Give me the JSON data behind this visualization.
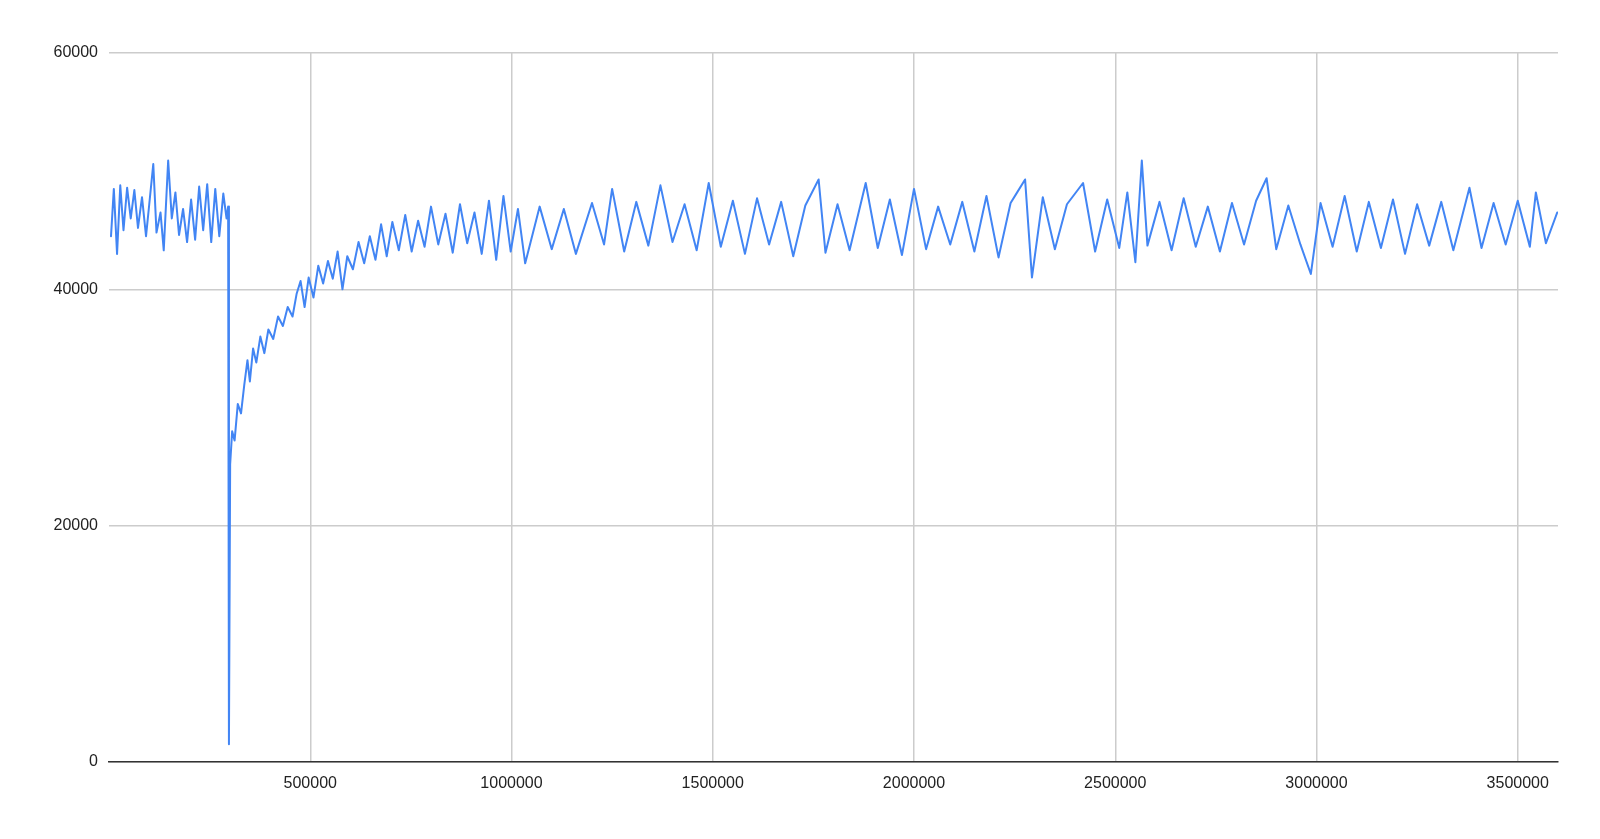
{
  "chart_data": {
    "type": "line",
    "color": "#4285f4",
    "x": [
      5000,
      12000,
      20000,
      28000,
      36000,
      45000,
      54000,
      63000,
      72000,
      82000,
      92000,
      100000,
      110000,
      118000,
      128000,
      136000,
      147000,
      156000,
      165000,
      174000,
      184000,
      194000,
      204000,
      214000,
      224000,
      234000,
      244000,
      254000,
      264000,
      274000,
      284000,
      292000,
      296000,
      298000,
      301000,
      306000,
      312000,
      320000,
      328000,
      336000,
      344000,
      350000,
      358000,
      366000,
      376000,
      386000,
      396000,
      408000,
      420000,
      432000,
      444000,
      456000,
      466000,
      476000,
      486000,
      496000,
      508000,
      520000,
      532000,
      544000,
      556000,
      568000,
      580000,
      592000,
      606000,
      620000,
      634000,
      648000,
      662000,
      676000,
      690000,
      704000,
      720000,
      736000,
      752000,
      768000,
      784000,
      800000,
      818000,
      836000,
      854000,
      872000,
      890000,
      908000,
      926000,
      944000,
      962000,
      980000,
      998000,
      1016000,
      1034000,
      1070000,
      1100000,
      1130000,
      1160000,
      1200000,
      1230000,
      1250000,
      1280000,
      1310000,
      1340000,
      1370000,
      1400000,
      1430000,
      1460000,
      1490000,
      1520000,
      1550000,
      1580000,
      1610000,
      1640000,
      1670000,
      1700000,
      1730000,
      1763000,
      1780000,
      1810000,
      1840000,
      1880000,
      1910000,
      1940000,
      1970000,
      2000000,
      2030000,
      2060000,
      2090000,
      2120000,
      2150000,
      2180000,
      2210000,
      2240000,
      2276000,
      2293000,
      2320000,
      2350000,
      2380000,
      2420000,
      2450000,
      2480000,
      2510000,
      2530000,
      2550000,
      2566000,
      2580000,
      2610000,
      2640000,
      2670000,
      2700000,
      2730000,
      2760000,
      2790000,
      2820000,
      2850000,
      2876000,
      2900000,
      2930000,
      2960000,
      2986000,
      3010000,
      3040000,
      3070000,
      3100000,
      3130000,
      3160000,
      3190000,
      3220000,
      3250000,
      3280000,
      3310000,
      3340000,
      3380000,
      3410000,
      3440000,
      3470000,
      3500000,
      3530000,
      3545000,
      3570000,
      3598000
    ],
    "values": [
      44500,
      48500,
      43000,
      48800,
      45000,
      48600,
      46000,
      48400,
      45200,
      47800,
      44500,
      47200,
      50600,
      44800,
      46500,
      43300,
      50900,
      46000,
      48200,
      44600,
      46800,
      44000,
      47600,
      44200,
      48700,
      45000,
      48900,
      44000,
      48500,
      44500,
      48100,
      46000,
      47000,
      1500,
      25200,
      28000,
      27200,
      30300,
      29500,
      31900,
      34000,
      32200,
      35000,
      33800,
      36000,
      34600,
      36600,
      35800,
      37700,
      36900,
      38500,
      37700,
      39600,
      40700,
      38500,
      41000,
      39300,
      42000,
      40500,
      42400,
      40900,
      43200,
      40000,
      42800,
      41700,
      44000,
      42200,
      44500,
      42500,
      45500,
      42800,
      45700,
      43300,
      46300,
      43200,
      45800,
      43600,
      47000,
      43800,
      46400,
      43100,
      47200,
      43900,
      46500,
      43000,
      47500,
      42500,
      47900,
      43200,
      46800,
      42200,
      47000,
      43400,
      46800,
      43000,
      47300,
      43800,
      48500,
      43200,
      47400,
      43700,
      48800,
      44000,
      47200,
      43300,
      49000,
      43600,
      47500,
      43000,
      47700,
      43800,
      47400,
      42800,
      47100,
      49300,
      43100,
      47200,
      43300,
      49000,
      43500,
      47600,
      42900,
      48500,
      43400,
      47000,
      43800,
      47400,
      43200,
      47900,
      42700,
      47300,
      49300,
      41000,
      47800,
      43400,
      47200,
      49000,
      43200,
      47600,
      43500,
      48200,
      42300,
      50900,
      43700,
      47400,
      43300,
      47700,
      43600,
      47000,
      43200,
      47300,
      43800,
      47500,
      49400,
      43400,
      47100,
      43800,
      41300,
      47300,
      43600,
      47900,
      43200,
      47400,
      43500,
      47600,
      43000,
      47200,
      43700,
      47400,
      43300,
      48600,
      43500,
      47300,
      43800,
      47500,
      43600,
      48200,
      43900,
      46500
    ],
    "xlim": [
      0,
      3600000
    ],
    "ylim": [
      0,
      60000
    ],
    "xticks": [
      500000,
      1000000,
      1500000,
      2000000,
      2500000,
      3000000,
      3500000
    ],
    "yticks": [
      0,
      20000,
      40000,
      60000
    ],
    "grid": true
  }
}
